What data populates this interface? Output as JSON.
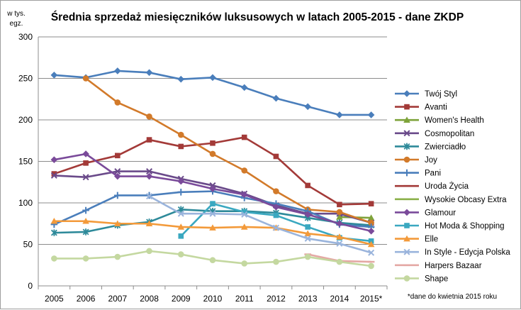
{
  "chart_data": {
    "type": "line",
    "title": "Średnia sprzedaż miesięczników luksusowych  w latach 2005-2015 - dane ZKDP",
    "ylabel_line1": "w tys.",
    "ylabel_line2": "egz.",
    "note": "*dane do kwietnia 2015 roku",
    "ylim": [
      0,
      300
    ],
    "yticks": [
      0,
      50,
      100,
      150,
      200,
      250,
      300
    ],
    "grid": true,
    "legend_position": "right",
    "categories": [
      "2005",
      "2006",
      "2007",
      "2008",
      "2009",
      "2010",
      "2011",
      "2012",
      "2013",
      "2014",
      "2015*"
    ],
    "series": [
      {
        "name": "Twój Styl",
        "color": "#4a7ebb",
        "marker": "diamond",
        "values": [
          254,
          251,
          259,
          257,
          249,
          251,
          239,
          226,
          216,
          206,
          206
        ]
      },
      {
        "name": "Avanti",
        "color": "#a33a38",
        "marker": "square",
        "values": [
          135,
          148,
          157,
          176,
          168,
          172,
          179,
          156,
          121,
          98,
          99
        ]
      },
      {
        "name": "Women's Health",
        "color": "#7ea33a",
        "marker": "triangle",
        "values": [
          null,
          null,
          null,
          null,
          null,
          null,
          null,
          null,
          null,
          83,
          82
        ]
      },
      {
        "name": "Cosmopolitan",
        "color": "#6a4a8a",
        "marker": "x",
        "values": [
          133,
          131,
          138,
          138,
          129,
          121,
          111,
          97,
          87,
          87,
          76
        ]
      },
      {
        "name": "Zwierciadło",
        "color": "#2e8a9a",
        "marker": "asterisk",
        "values": [
          64,
          65,
          73,
          77,
          92,
          90,
          90,
          88,
          82,
          76,
          73
        ]
      },
      {
        "name": "Joy",
        "color": "#d27a2a",
        "marker": "circle",
        "values": [
          null,
          250,
          221,
          204,
          182,
          159,
          139,
          114,
          92,
          89,
          76
        ]
      },
      {
        "name": "Pani",
        "color": "#4a7ebb",
        "marker": "plus",
        "values": [
          74,
          91,
          109,
          109,
          113,
          114,
          106,
          99,
          90,
          74,
          71
        ]
      },
      {
        "name": "Uroda Życia",
        "color": "#a33a38",
        "marker": "dash",
        "values": [
          null,
          null,
          null,
          null,
          null,
          null,
          null,
          null,
          null,
          null,
          null
        ]
      },
      {
        "name": "Wysokie Obcasy Extra",
        "color": "#8bb04a",
        "marker": "dash",
        "values": [
          null,
          null,
          null,
          null,
          null,
          null,
          null,
          null,
          null,
          null,
          null
        ]
      },
      {
        "name": "Glamour",
        "color": "#7a4a9a",
        "marker": "diamond",
        "values": [
          152,
          159,
          132,
          132,
          126,
          117,
          110,
          95,
          86,
          75,
          66
        ]
      },
      {
        "name": "Hot Moda & Shopping",
        "color": "#3aa8c0",
        "marker": "square",
        "values": [
          null,
          null,
          null,
          null,
          60,
          99,
          89,
          85,
          71,
          58,
          54
        ]
      },
      {
        "name": "Elle",
        "color": "#f39a3a",
        "marker": "triangle",
        "values": [
          78,
          78,
          75,
          75,
          71,
          70,
          71,
          70,
          63,
          59,
          50
        ]
      },
      {
        "name": "In Style - Edycja Polska",
        "color": "#9ab4dc",
        "marker": "x",
        "values": [
          null,
          null,
          null,
          108,
          87,
          87,
          86,
          70,
          57,
          51,
          40
        ]
      },
      {
        "name": "Harpers Bazaar",
        "color": "#e4a8a4",
        "marker": "dash",
        "values": [
          null,
          null,
          null,
          null,
          null,
          null,
          null,
          null,
          38,
          30,
          29
        ]
      },
      {
        "name": "Shape",
        "color": "#c4d8a0",
        "marker": "circle",
        "values": [
          33,
          33,
          35,
          42,
          38,
          31,
          27,
          29,
          35,
          29,
          24
        ]
      }
    ]
  }
}
